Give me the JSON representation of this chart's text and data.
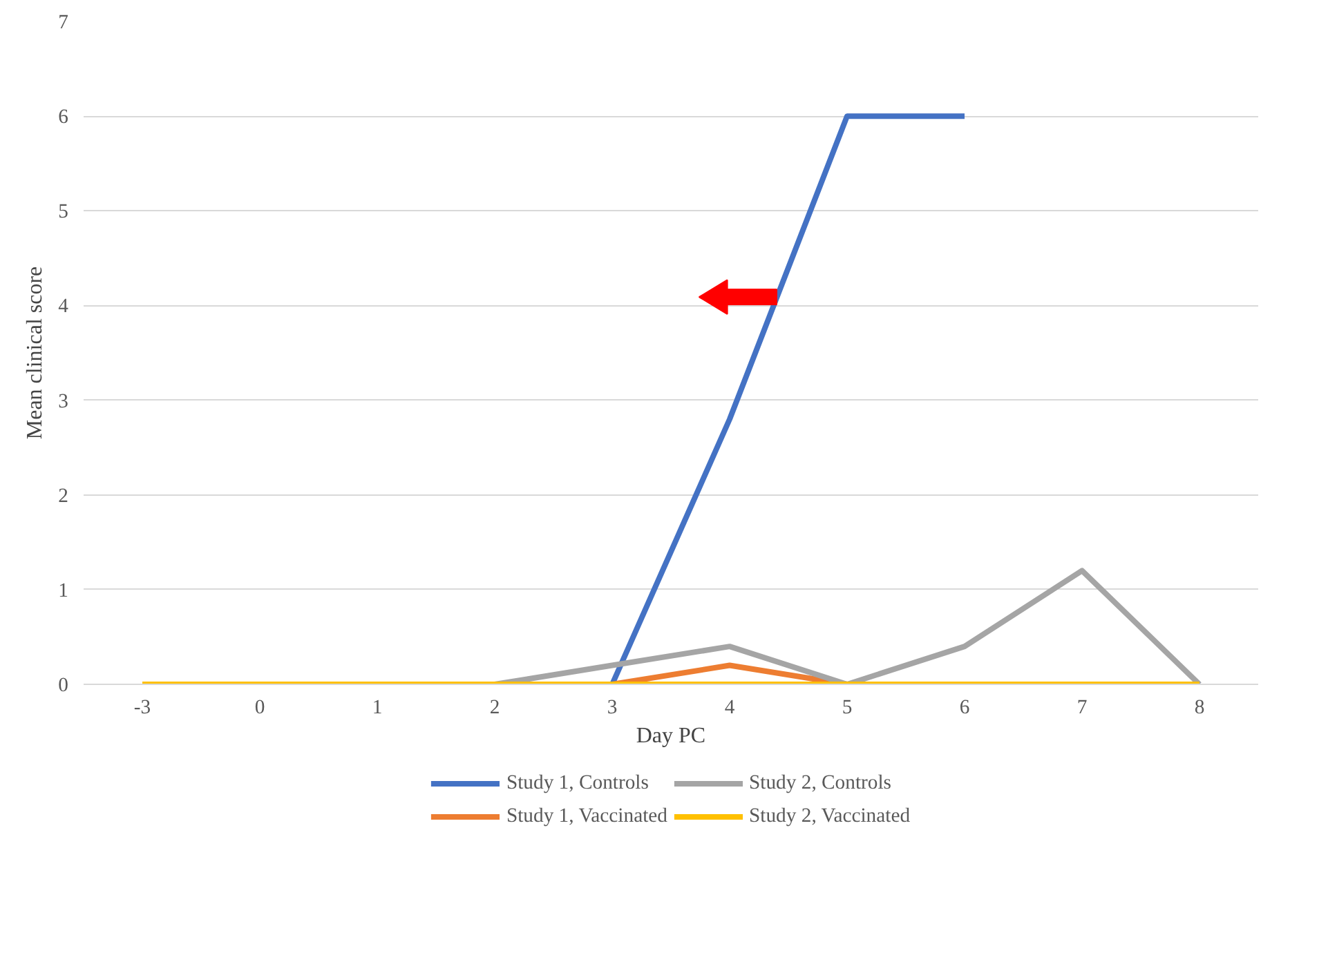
{
  "chart_data": {
    "type": "line",
    "xlabel": "Day PC",
    "ylabel": "Mean clinical score",
    "categories": [
      "-3",
      "0",
      "1",
      "2",
      "3",
      "4",
      "5",
      "6",
      "7",
      "8"
    ],
    "series": [
      {
        "name": "Study 1, Controls",
        "color": "#4472c4",
        "values": [
          null,
          null,
          null,
          null,
          0,
          2.8,
          6,
          6,
          null,
          null
        ]
      },
      {
        "name": "Study 1, Vaccinated",
        "color": "#ed7d31",
        "values": [
          null,
          null,
          null,
          null,
          0,
          0.2,
          0,
          null,
          null,
          null
        ]
      },
      {
        "name": "Study 2, Controls",
        "color": "#a5a5a5",
        "values": [
          null,
          null,
          null,
          0,
          0.2,
          0.4,
          0,
          0.4,
          1.2,
          0
        ]
      },
      {
        "name": "Study 2, Vaccinated",
        "color": "#ffc000",
        "values": [
          0,
          0,
          0,
          0,
          0,
          0,
          0,
          0,
          0,
          0
        ]
      }
    ],
    "ylim": [
      0,
      7
    ],
    "yticks": [
      0,
      1,
      2,
      3,
      4,
      5,
      6,
      7
    ],
    "grid": "y",
    "legend": "bottom",
    "marker": "none",
    "line_style": "solid"
  }
}
